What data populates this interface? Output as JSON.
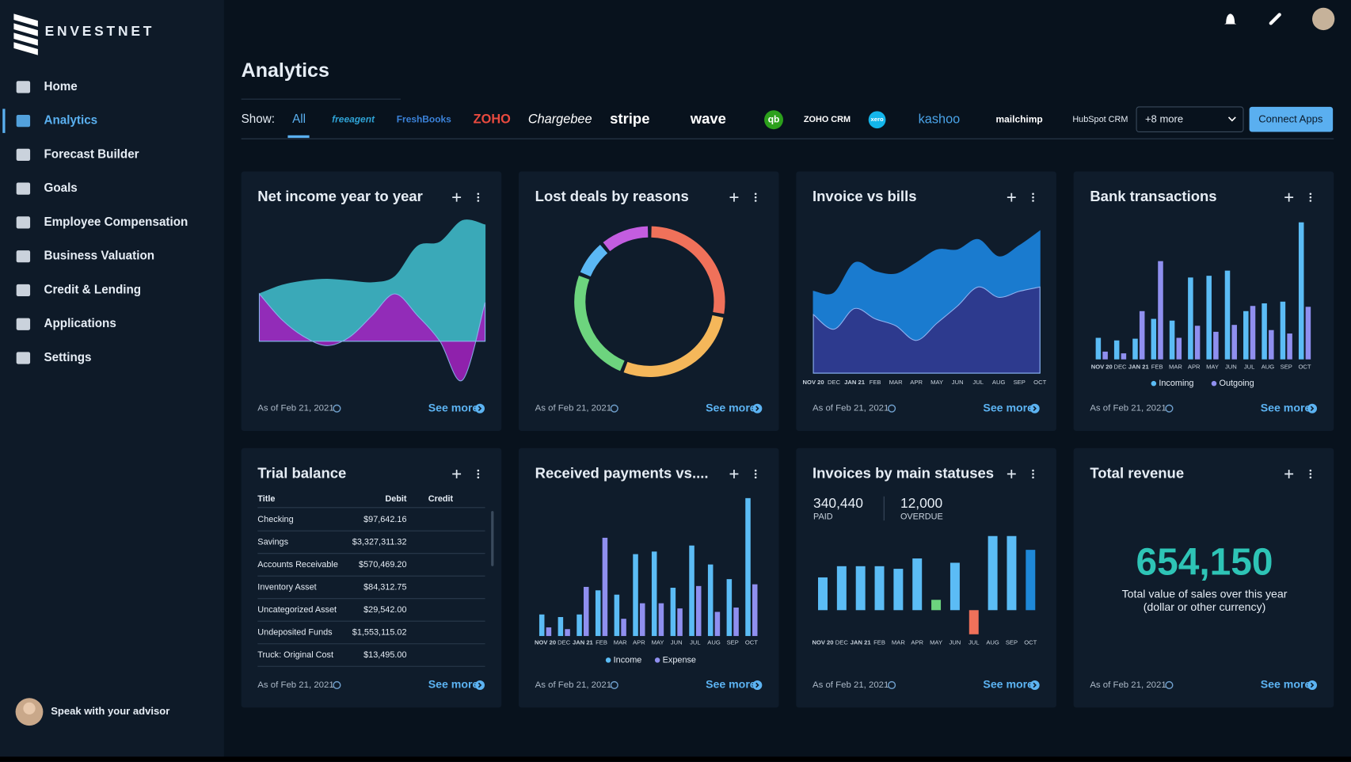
{
  "brand": "ENVESTNET",
  "nav": [
    "Home",
    "Analytics",
    "Forecast Builder",
    "Goals",
    "Employee Compensation",
    "Business Valuation",
    "Credit & Lending",
    "Applications",
    "Settings"
  ],
  "active_nav": 1,
  "advisor": "Speak with your advisor",
  "page_title": "Analytics",
  "filter": {
    "label": "Show:",
    "tabs": [
      "All",
      "freeagent",
      "FreshBooks",
      "ZOHO",
      "Chargebee",
      "stripe",
      "wave",
      "qb",
      "ZOHO CRM",
      "xero",
      "kashoo",
      "mailchimp",
      "HubSpot CRM"
    ],
    "more": "+8 more",
    "button": "Connect Apps"
  },
  "widgets": [
    {
      "type": "area",
      "title": "Net income year to year",
      "as_of": "As of Feb 21, 2021",
      "link": "See more",
      "ylim": [
        -50,
        150
      ],
      "series": [
        {
          "color": "#3aa9b8",
          "values": [
            55,
            65,
            70,
            72,
            70,
            68,
            75,
            110,
            115,
            140,
            135
          ]
        },
        {
          "color": "#9a22b8",
          "values": [
            55,
            25,
            5,
            -5,
            5,
            30,
            55,
            30,
            0,
            -45,
            45
          ]
        }
      ]
    },
    {
      "type": "donut",
      "title": "Lost deals by reasons",
      "as_of": "As of Feb 21, 2021",
      "link": "See more",
      "values": [
        28,
        28,
        25,
        8,
        11
      ],
      "colors": [
        "#f0715a",
        "#f5b75a",
        "#6dd47e",
        "#5bb8f5",
        "#c35de0"
      ]
    },
    {
      "type": "area",
      "title": "Invoice vs bills",
      "as_of": "As of Feb 21, 2021",
      "link": "See more",
      "ylim": [
        0,
        170
      ],
      "categories": [
        "NOV 20",
        "DEC",
        "JAN 21",
        "FEB",
        "MAR",
        "APR",
        "MAY",
        "JUN",
        "JUL",
        "AUG",
        "SEP",
        "OCT"
      ],
      "series": [
        {
          "color": "#1a7bcf",
          "values": [
            95,
            93,
            128,
            118,
            115,
            128,
            143,
            143,
            155,
            135,
            148,
            165
          ]
        },
        {
          "color": "#2d3a8e",
          "values": [
            68,
            51,
            75,
            63,
            55,
            38,
            58,
            78,
            100,
            88,
            95,
            100
          ]
        }
      ]
    },
    {
      "type": "bar",
      "title": "Bank transactions",
      "as_of": "As of Feb 21, 2021",
      "link": "See more",
      "ylim": [
        0,
        160
      ],
      "categories": [
        "NOV 20",
        "DEC",
        "JAN 21",
        "FEB",
        "MAR",
        "APR",
        "MAY",
        "JUN",
        "JUL",
        "AUG",
        "SEP",
        "OCT"
      ],
      "series": [
        {
          "name": "Incoming",
          "color": "#5bbcf5",
          "values": [
            25,
            22,
            24,
            47,
            45,
            95,
            97,
            103,
            56,
            65,
            67,
            159
          ]
        },
        {
          "name": "Outgoing",
          "color": "#8f8fef",
          "values": [
            9,
            7,
            56,
            114,
            25,
            39,
            32,
            40,
            62,
            34,
            30,
            61
          ]
        }
      ]
    },
    {
      "type": "table",
      "title": "Trial balance",
      "as_of": "As of Feb 21, 2021",
      "link": "See more",
      "columns": [
        "Title",
        "Debit",
        "Credit"
      ],
      "rows": [
        [
          "Checking",
          "$97,642.16"
        ],
        [
          "Savings",
          "$3,327,311.32"
        ],
        [
          "Accounts Receivable",
          "$570,469.20"
        ],
        [
          "Inventory Asset",
          "$84,312.75"
        ],
        [
          "Uncategorized Asset",
          "$29,542.00"
        ],
        [
          "Undeposited Funds",
          "$1,553,115.02"
        ],
        [
          "Truck: Original Cost",
          "$13,495.00"
        ]
      ]
    },
    {
      "type": "bar",
      "title": "Received payments vs....",
      "as_of": "As of Feb 21, 2021",
      "link": "See more",
      "ylim": [
        0,
        165
      ],
      "categories": [
        "NOV 20",
        "DEC",
        "JAN 21",
        "FEB",
        "MAR",
        "APR",
        "MAY",
        "JUN",
        "JUL",
        "AUG",
        "SEP",
        "OCT"
      ],
      "series": [
        {
          "name": "Income",
          "color": "#5bbcf5",
          "values": [
            25,
            22,
            25,
            53,
            48,
            95,
            98,
            56,
            105,
            83,
            66,
            160
          ]
        },
        {
          "name": "Expense",
          "color": "#8f8fef",
          "values": [
            10,
            8,
            57,
            114,
            20,
            38,
            38,
            32,
            58,
            28,
            33,
            60
          ]
        }
      ]
    },
    {
      "type": "bar",
      "title": "Invoices by main statuses",
      "as_of": "As of Feb 21, 2021",
      "link": "See more",
      "ylim": [
        -35,
        90
      ],
      "stats": [
        {
          "value": "340,440",
          "label": "PAID"
        },
        {
          "value": "12,000",
          "label": "OVERDUE"
        }
      ],
      "categories": [
        "NOV 20",
        "DEC",
        "JAN 21",
        "FEB",
        "MAR",
        "APR",
        "MAY",
        "JUN",
        "JUL",
        "AUG",
        "SEP",
        "OCT"
      ],
      "series": [
        {
          "values": [
            38,
            51,
            51,
            51,
            48,
            60,
            12,
            55,
            -28,
            86,
            86,
            70
          ],
          "colors": [
            "#5bbcf5",
            "#5bbcf5",
            "#5bbcf5",
            "#5bbcf5",
            "#5bbcf5",
            "#5bbcf5",
            "#6cd47e",
            "#5bbcf5",
            "#f0715a",
            "#5bbcf5",
            "#5bbcf5",
            "#1e88d8"
          ]
        }
      ]
    },
    {
      "type": "kpi",
      "title": "Total revenue",
      "as_of": "As of Feb 21, 2021",
      "link": "See more",
      "value": "654,150",
      "lines": [
        "Total value of sales over this year",
        "(dollar or other currency)"
      ]
    }
  ]
}
